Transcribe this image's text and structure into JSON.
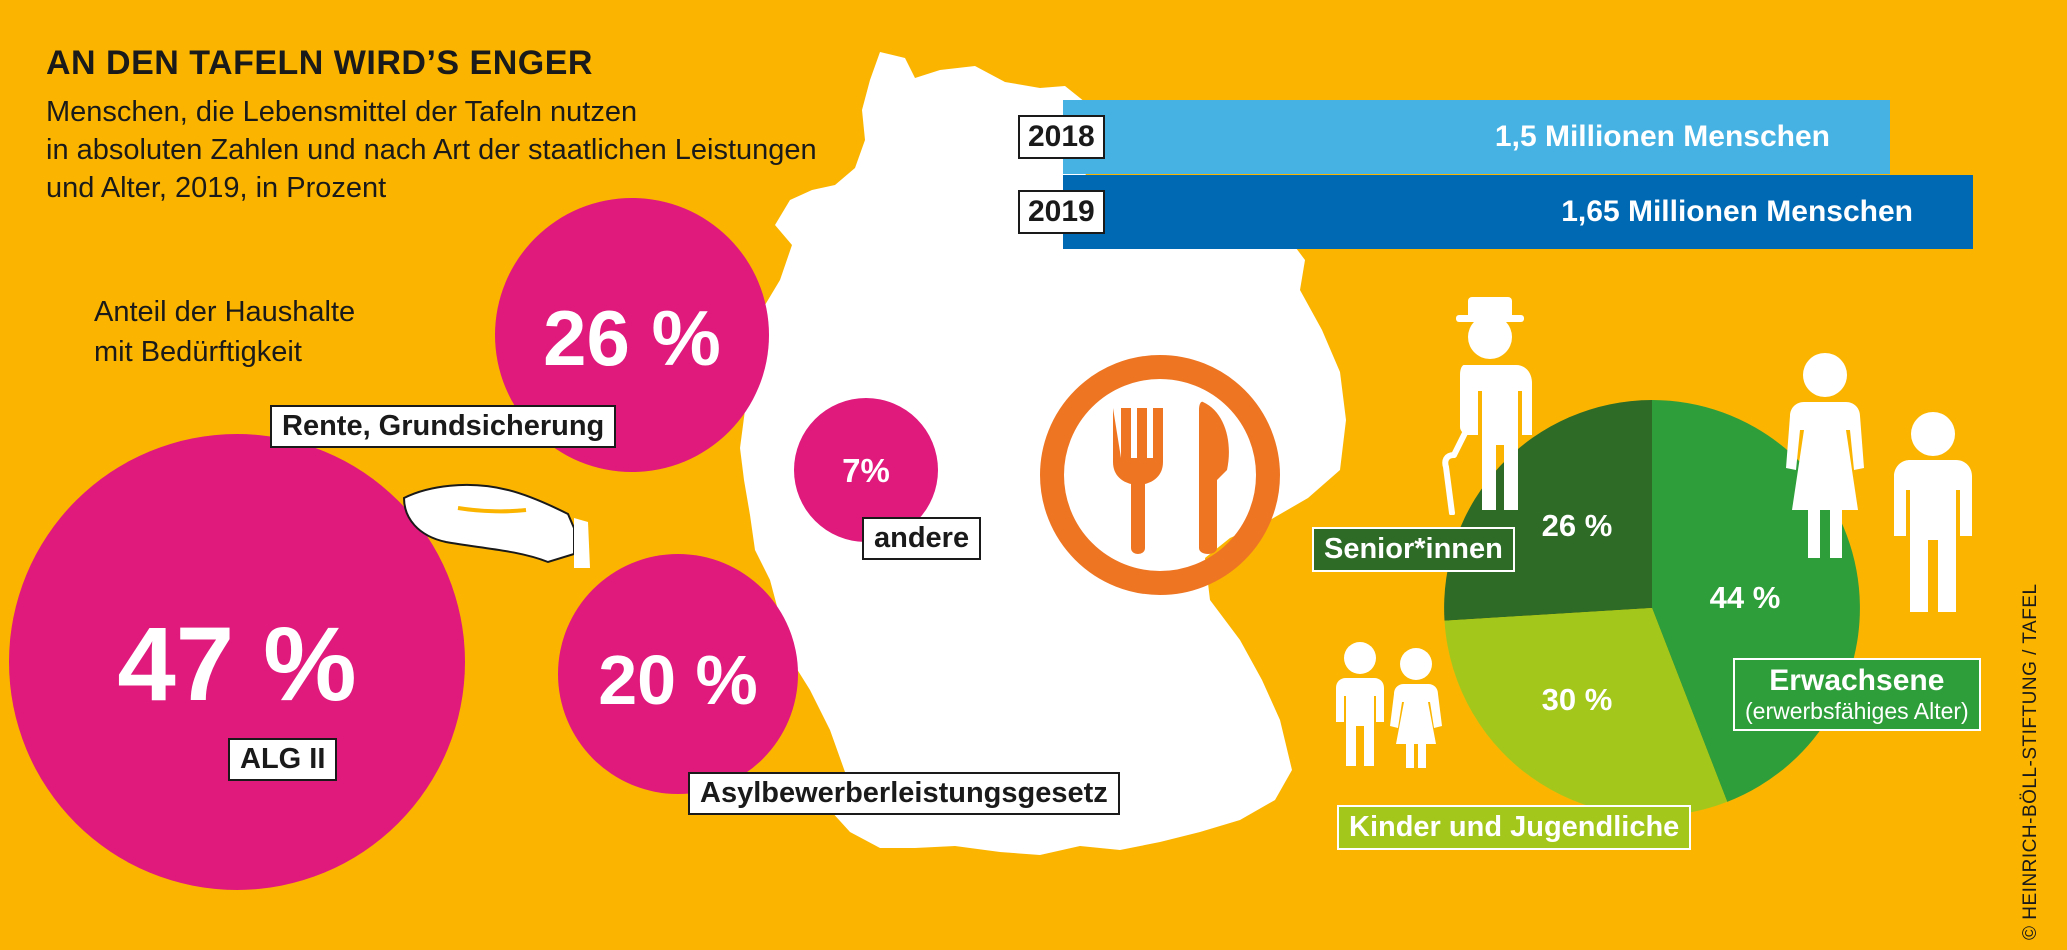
{
  "header": {
    "title": "AN DEN TAFELN WIRD’S ENGER",
    "subtitle_lines": [
      "Menschen, die Lebensmittel der Tafeln nutzen",
      "in absoluten Zahlen und nach Art der staatlichen Leistungen",
      "und Alter, 2019, in Prozent"
    ]
  },
  "households_heading_lines": [
    "Anteil der Haushalte",
    "mit Bedürftigkeit"
  ],
  "credit": "© HEINRICH-BÖLL-STIFTUNG / TAFEL",
  "colors": {
    "background": "#FBB500",
    "magenta": "#E0197D",
    "bar_2018": "#45B2E3",
    "bar_2019": "#0069B4",
    "senior": "#2D6B27",
    "erwachsene": "#2E9E3A",
    "kinder": "#A3C81B",
    "icon_orange": "#EE7623"
  },
  "icons": [
    "hand-icon",
    "plate-fork-knife-icon",
    "senior-with-cane-icon",
    "woman-icon",
    "man-icon",
    "children-icon",
    "germany-map-silhouette"
  ],
  "chart_data": [
    {
      "type": "bar",
      "categories": [
        "2018",
        "2019"
      ],
      "values": [
        1.5,
        1.65
      ],
      "value_labels": [
        "1,5 Millionen Menschen",
        "1,65 Millionen Menschen"
      ],
      "unit": "Millionen Menschen"
    },
    {
      "type": "bubble",
      "heading": "Anteil der Haushalte mit Bedürftigkeit",
      "categories": [
        "ALG II",
        "Rente, Grundsicherung",
        "Asylbewerberleistungsgesetz",
        "andere"
      ],
      "values": [
        47,
        26,
        20,
        7
      ],
      "value_labels": [
        "47 %",
        "26 %",
        "20 %",
        "7%"
      ],
      "unit": "%"
    },
    {
      "type": "pie",
      "categories": [
        "Senior*innen",
        "Erwachsene",
        "Kinder und Jugendliche"
      ],
      "category_notes": [
        "",
        "(erwerbsfähiges Alter)",
        ""
      ],
      "values": [
        26,
        44,
        30
      ],
      "value_labels": [
        "26 %",
        "44 %",
        "30 %"
      ],
      "unit": "%"
    }
  ]
}
